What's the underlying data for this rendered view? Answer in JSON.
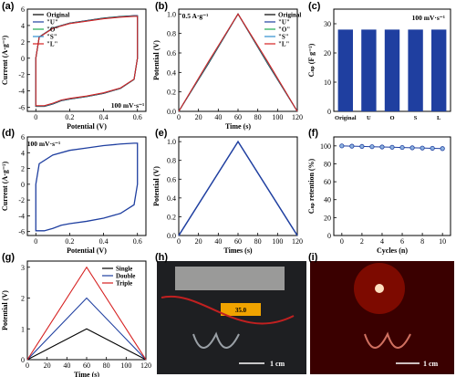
{
  "panel_labels": [
    "(a)",
    "(b)",
    "(c)",
    "(d)",
    "(e)",
    "(f)",
    "(g)",
    "(h)",
    "(i)"
  ],
  "colors": {
    "original": "#000000",
    "U": "#1f3fa0",
    "O": "#1faa50",
    "S": "#2f8fcf",
    "L": "#d62020",
    "bar": "#1f3fa0",
    "blue_line": "#1f3fa0",
    "single": "#000000",
    "double": "#1f3fa0",
    "triple": "#d62020",
    "photo_dark": "#2a2a2a",
    "led": "#ff2000"
  },
  "photos": {
    "h": {
      "scale_label": "1 cm",
      "display": "35.0",
      "description": "photo"
    },
    "i": {
      "scale_label": "1 cm",
      "description": "photo"
    }
  },
  "chart_data": [
    {
      "id": "a",
      "type": "line",
      "xlabel": "Potential (V)",
      "ylabel": "Current (A·g⁻¹)",
      "xlim": [
        -0.05,
        0.65
      ],
      "ylim": [
        -6.5,
        6.0
      ],
      "xticks": [
        0.0,
        0.2,
        0.4,
        0.6
      ],
      "yticks": [
        -6,
        -4,
        -2,
        0,
        2,
        4,
        6
      ],
      "annotation": "100 mV·s⁻¹",
      "legend": [
        "Original",
        "\"U\"",
        "\"O\"",
        "\"S\"",
        "\"L\""
      ],
      "series": [
        {
          "name": "Original",
          "x": [
            0,
            0.02,
            0.1,
            0.2,
            0.3,
            0.4,
            0.5,
            0.58,
            0.6,
            0.6,
            0.58,
            0.5,
            0.4,
            0.3,
            0.2,
            0.15,
            0.1,
            0.05,
            0,
            0
          ],
          "y": [
            0,
            2.6,
            3.7,
            4.3,
            4.6,
            4.9,
            5.1,
            5.2,
            5.2,
            0,
            -2.6,
            -3.7,
            -4.3,
            -4.7,
            -5.0,
            -5.2,
            -5.6,
            -5.9,
            -5.9,
            0
          ]
        },
        {
          "name": "\"U\"",
          "x": [
            0,
            0.02,
            0.1,
            0.2,
            0.3,
            0.4,
            0.5,
            0.58,
            0.6,
            0.6,
            0.58,
            0.5,
            0.4,
            0.3,
            0.2,
            0.15,
            0.1,
            0.05,
            0,
            0
          ],
          "y": [
            0,
            2.6,
            3.7,
            4.3,
            4.6,
            4.9,
            5.1,
            5.2,
            5.2,
            0,
            -2.6,
            -3.7,
            -4.3,
            -4.7,
            -5.0,
            -5.2,
            -5.6,
            -5.9,
            -5.9,
            0
          ]
        }
      ]
    },
    {
      "id": "b",
      "type": "line",
      "xlabel": "Time (s)",
      "ylabel": "Potential (V)",
      "xlim": [
        0,
        120
      ],
      "ylim": [
        0,
        1.05
      ],
      "xticks": [
        0,
        20,
        40,
        60,
        80,
        100,
        120
      ],
      "yticks": [
        0.0,
        0.2,
        0.4,
        0.6,
        0.8,
        1.0
      ],
      "annotation": "0.5 A·g⁻¹",
      "legend": [
        "Original",
        "\"U\"",
        "\"O\"",
        "\"S\"",
        "\"L\""
      ],
      "series": [
        {
          "name": "Original",
          "x": [
            0,
            60,
            120
          ],
          "y": [
            0,
            1.0,
            0
          ]
        }
      ]
    },
    {
      "id": "c",
      "type": "bar",
      "ylabel": "Cₛₚ (F g⁻¹)",
      "annotation": "100 mV·s⁻¹",
      "categories": [
        "Original",
        "U",
        "O",
        "S",
        "L"
      ],
      "values": [
        28,
        28,
        28,
        28,
        28
      ],
      "ylim": [
        0,
        35
      ],
      "yticks": [
        0,
        10,
        20,
        30
      ]
    },
    {
      "id": "d",
      "type": "line",
      "xlabel": "Potential (V)",
      "ylabel": "Current (A·g⁻¹)",
      "xlim": [
        -0.05,
        0.65
      ],
      "ylim": [
        -6.5,
        6.0
      ],
      "xticks": [
        0.0,
        0.2,
        0.4,
        0.6
      ],
      "yticks": [
        -6,
        -4,
        -2,
        0,
        2,
        4,
        6
      ],
      "annotation": "100 mV·s⁻¹",
      "series": [
        {
          "name": "",
          "x": [
            0,
            0.02,
            0.1,
            0.2,
            0.3,
            0.4,
            0.5,
            0.58,
            0.6,
            0.6,
            0.58,
            0.5,
            0.4,
            0.3,
            0.2,
            0.15,
            0.1,
            0.05,
            0,
            0
          ],
          "y": [
            0,
            2.6,
            3.7,
            4.3,
            4.6,
            4.9,
            5.1,
            5.2,
            5.2,
            0,
            -2.6,
            -3.7,
            -4.3,
            -4.7,
            -5.0,
            -5.2,
            -5.6,
            -5.9,
            -5.9,
            0
          ]
        }
      ]
    },
    {
      "id": "e",
      "type": "line",
      "xlabel": "Times (s)",
      "ylabel": "Potential (V)",
      "xlim": [
        0,
        120
      ],
      "ylim": [
        0,
        1.05
      ],
      "xticks": [
        0,
        20,
        40,
        60,
        80,
        100,
        120
      ],
      "yticks": [
        0.0,
        0.2,
        0.4,
        0.6,
        0.8,
        1.0
      ],
      "series": [
        {
          "name": "",
          "x": [
            0,
            60,
            120
          ],
          "y": [
            0,
            1.0,
            0
          ]
        }
      ]
    },
    {
      "id": "f",
      "type": "line",
      "xlabel": "Cycles (n)",
      "ylabel": "Cₛₚ retention (%)",
      "xlim": [
        -0.8,
        10.8
      ],
      "ylim": [
        0,
        110
      ],
      "xticks": [
        0,
        2,
        4,
        6,
        8,
        10
      ],
      "yticks": [
        0,
        20,
        40,
        60,
        80,
        100
      ],
      "series": [
        {
          "name": "",
          "x": [
            0,
            1,
            2,
            3,
            4,
            5,
            6,
            7,
            8,
            9,
            10
          ],
          "y": [
            100,
            99.7,
            99.4,
            99.1,
            98.8,
            98.5,
            98.2,
            97.9,
            97.6,
            97.3,
            97.0
          ]
        }
      ]
    },
    {
      "id": "g",
      "type": "line",
      "xlabel": "Time (s)",
      "ylabel": "Potential (V)",
      "xlim": [
        0,
        120
      ],
      "ylim": [
        0,
        3.2
      ],
      "xticks": [
        0,
        20,
        40,
        60,
        80,
        100,
        120
      ],
      "yticks": [
        0,
        1,
        2,
        3
      ],
      "legend": [
        "Single",
        "Double",
        "Triple"
      ],
      "series": [
        {
          "name": "Single",
          "x": [
            0,
            60,
            120
          ],
          "y": [
            0,
            1.0,
            0
          ]
        },
        {
          "name": "Double",
          "x": [
            0,
            60,
            120
          ],
          "y": [
            0,
            2.0,
            0
          ]
        },
        {
          "name": "Triple",
          "x": [
            0,
            60,
            120
          ],
          "y": [
            0,
            3.0,
            0
          ]
        }
      ]
    }
  ]
}
